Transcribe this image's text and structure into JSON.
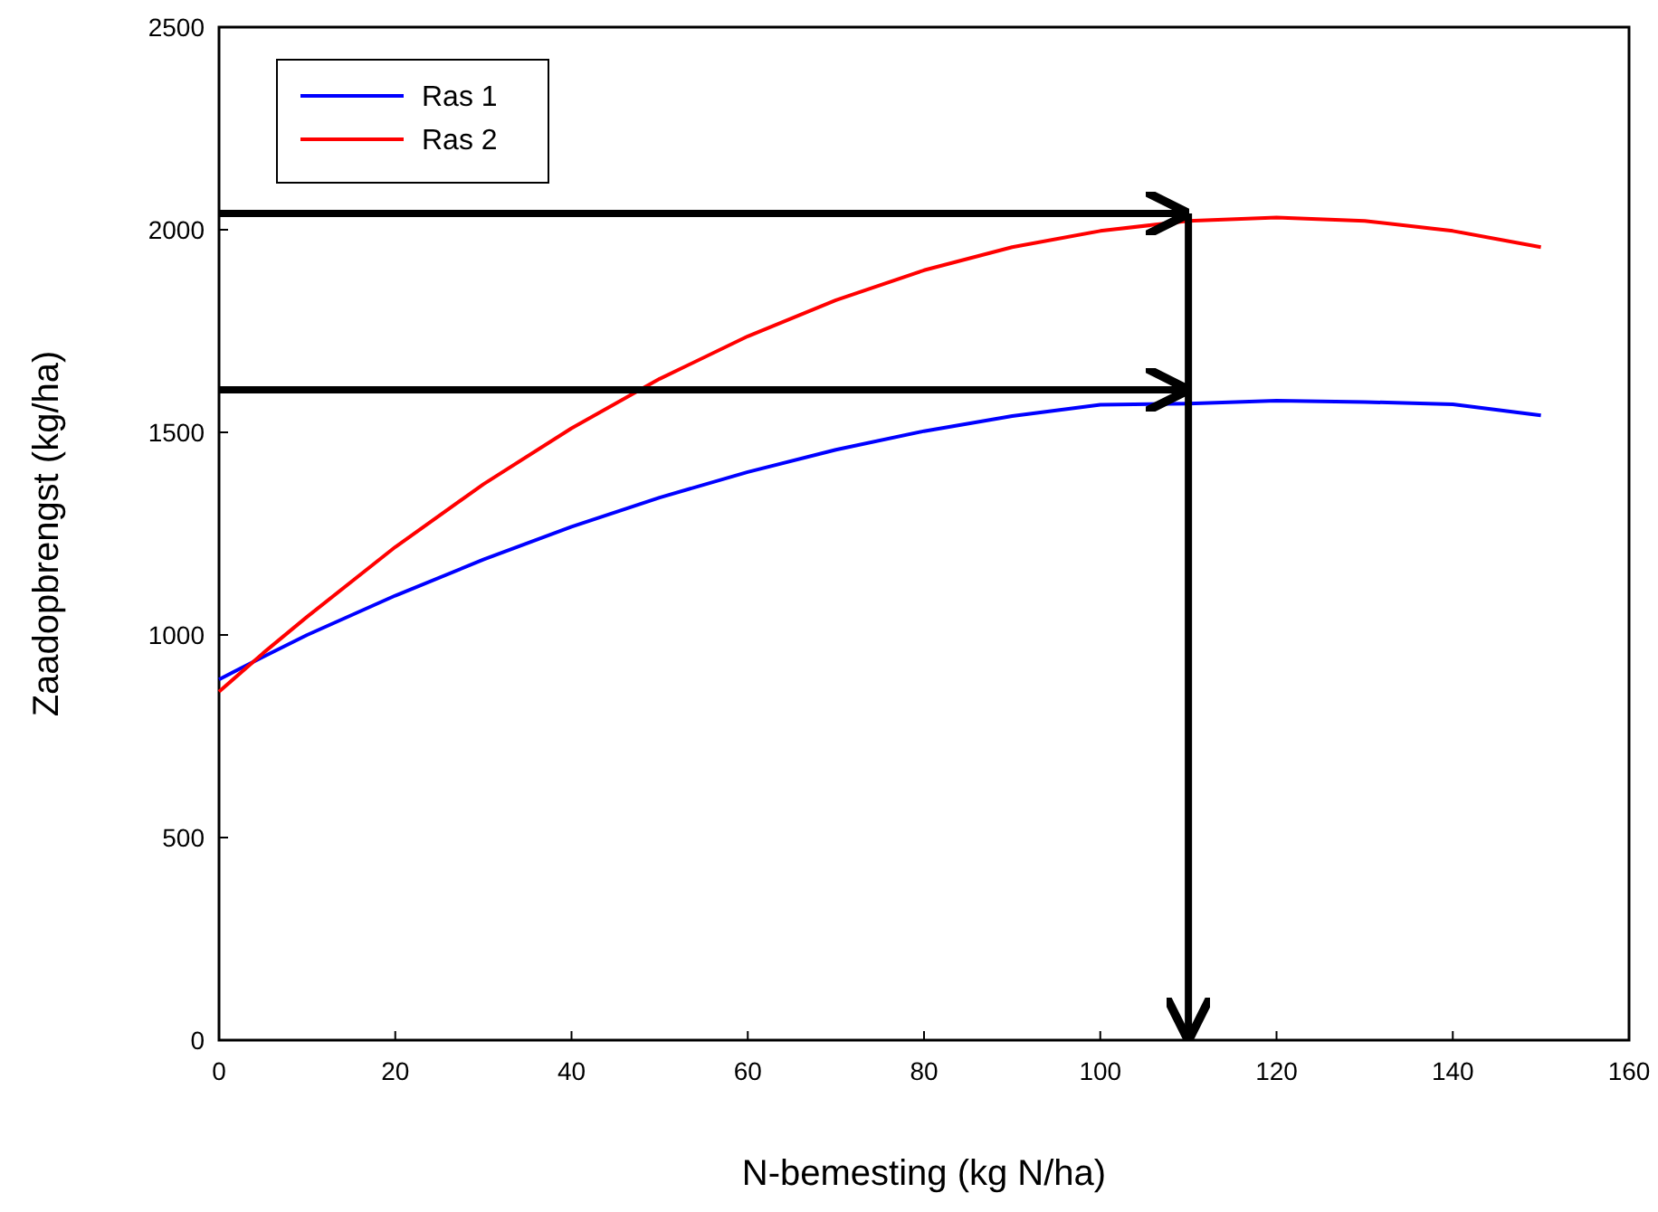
{
  "chart_data": {
    "type": "line",
    "xlabel": "N-bemesting (kg N/ha)",
    "ylabel": "Zaadopbrengst (kg/ha)",
    "x": [
      0,
      5,
      10,
      20,
      30,
      40,
      50,
      60,
      70,
      80,
      90,
      100,
      110,
      120,
      130,
      140,
      150
    ],
    "series": [
      {
        "name": "Ras 1",
        "color": "#0000ff",
        "values": [
          890,
          946,
          1000,
          1097,
          1186,
          1267,
          1339,
          1402,
          1457,
          1503,
          1540,
          1568,
          1571,
          1578,
          1575,
          1569,
          1542
        ]
      },
      {
        "name": "Ras 2",
        "color": "#ff0000",
        "values": [
          860,
          955,
          1045,
          1217,
          1372,
          1510,
          1632,
          1737,
          1826,
          1900,
          1957,
          1997,
          2022,
          2030,
          2022,
          1997,
          1957
        ]
      }
    ],
    "xlim": [
      0,
      160
    ],
    "xticks": [
      0,
      20,
      40,
      60,
      80,
      100,
      120,
      140,
      160
    ],
    "ylim": [
      0,
      2500
    ],
    "yticks": [
      0,
      500,
      1000,
      1500,
      2000,
      2500
    ],
    "ref_lines": [
      {
        "axis": "y",
        "value": 2040,
        "color": "#000000"
      },
      {
        "axis": "y",
        "value": 1605,
        "color": "#000000"
      },
      {
        "axis": "x",
        "value": 110,
        "color": "#000000"
      }
    ],
    "legend": "top left",
    "grid": false,
    "marker": "none",
    "line_style": "solid"
  }
}
